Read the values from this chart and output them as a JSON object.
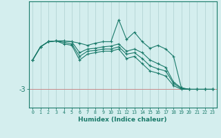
{
  "xlabel": "Humidex (Indice chaleur)",
  "background_color": "#d4eeee",
  "grid_color": "#b8d8d8",
  "line_color": "#1a7a6a",
  "ref_line_color": "#c88888",
  "ytick_label": "-3",
  "ytick_value": -3,
  "x_values": [
    0,
    1,
    2,
    3,
    4,
    5,
    6,
    7,
    8,
    9,
    10,
    11,
    12,
    13,
    14,
    15,
    16,
    17,
    18,
    19,
    20,
    21,
    22,
    23
  ],
  "series": [
    [
      1.0,
      2.8,
      3.5,
      3.6,
      3.6,
      3.5,
      3.3,
      3.0,
      3.3,
      3.5,
      3.5,
      6.5,
      3.8,
      4.8,
      3.5,
      2.6,
      3.0,
      2.5,
      1.5,
      -2.8,
      -3.0,
      -3.0,
      -3.0,
      -3.0
    ],
    [
      1.0,
      2.8,
      3.5,
      3.6,
      3.6,
      3.5,
      2.0,
      2.5,
      2.6,
      2.8,
      2.9,
      3.2,
      2.2,
      2.5,
      2.0,
      1.0,
      0.5,
      0.0,
      -2.0,
      -2.8,
      -3.0,
      -3.0,
      -3.0,
      -3.0
    ],
    [
      1.0,
      2.8,
      3.5,
      3.6,
      3.4,
      3.2,
      1.5,
      2.2,
      2.3,
      2.5,
      2.5,
      2.8,
      1.8,
      2.0,
      1.2,
      0.2,
      -0.2,
      -0.5,
      -2.2,
      -2.9,
      -3.0,
      -3.0,
      -3.0,
      -3.0
    ],
    [
      1.0,
      2.8,
      3.5,
      3.6,
      3.2,
      3.0,
      1.0,
      1.8,
      2.0,
      2.2,
      2.2,
      2.5,
      1.2,
      1.5,
      0.5,
      -0.5,
      -0.8,
      -1.2,
      -2.5,
      -3.0,
      -3.0,
      -3.0,
      -3.0,
      -3.0
    ]
  ],
  "ylim": [
    -5.5,
    9.0
  ],
  "xlim": [
    -0.5,
    23.5
  ]
}
